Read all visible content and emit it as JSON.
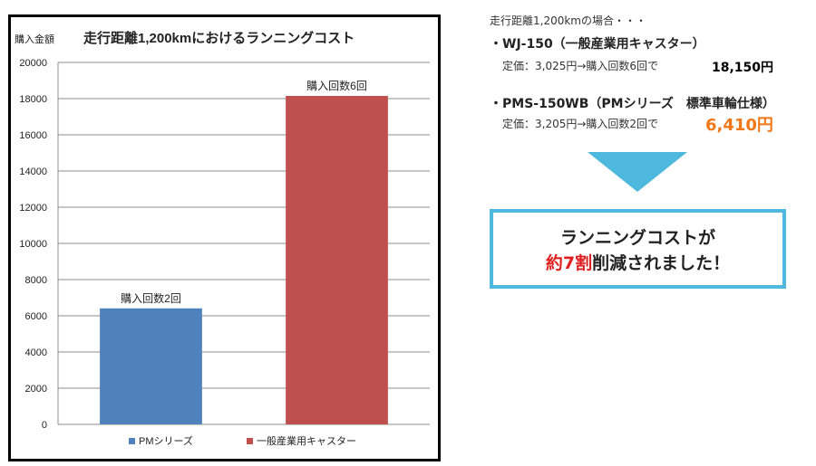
{
  "chart_data": {
    "type": "bar",
    "title": "走行距離1,200kmにおけるランニングコスト",
    "ylabel": "購入金額",
    "ylim": [
      0,
      20000
    ],
    "yticks": [
      0,
      2000,
      4000,
      6000,
      8000,
      10000,
      12000,
      14000,
      16000,
      18000,
      20000
    ],
    "grid": true,
    "legend_position": "bottom",
    "series": [
      {
        "name": "PMシリーズ",
        "value": 6410,
        "color": "#4f81bd",
        "data_label": "購入回数2回"
      },
      {
        "name": "一般産業用キャスター",
        "value": 18150,
        "color": "#c0504d",
        "data_label": "購入回数6回"
      }
    ]
  },
  "summary": {
    "intro": "走行距離1,200kmの場合・・・",
    "items": [
      {
        "title": "・WJ-150（一般産業用キャスター）",
        "detail": "定価：3,025円→購入回数6回で",
        "total": "18,150円"
      },
      {
        "title": "・PMS-150WB（PMシリーズ　標準車輪仕様）",
        "detail": "定価：3,205円→購入回数2回で",
        "total": "6,410円"
      }
    ],
    "result_line1": "ランニングコストが",
    "result_accent": "約7割",
    "result_rest": "削減されました！"
  },
  "colors": {
    "arrow": "#4fb8de",
    "box_border": "#4fb8de",
    "accent_red": "#e02020",
    "accent_orange": "#f07818"
  }
}
